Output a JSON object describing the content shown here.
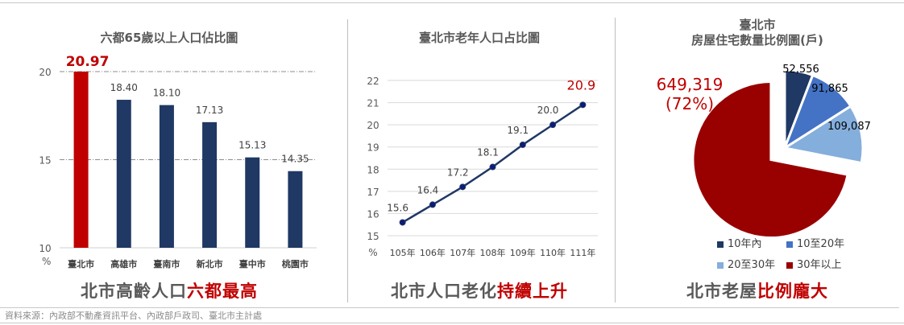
{
  "source": "資料來源：內政部不動產資訊平台、內政部戶政司、臺北市主計處",
  "colors": {
    "navy": "#1f3864",
    "red": "#c00000",
    "dark_red": "#990000",
    "blue": "#4472c4",
    "light_blue": "#84aedc"
  },
  "panel1": {
    "title": "六都65歲以上人口佔比圖",
    "caption_plain": "北市高齡人口",
    "caption_highlight": "六都最高",
    "highlight_label": "20.97",
    "unit": "%"
  },
  "panel2": {
    "title": "臺北市老年人口占比圖",
    "caption_plain": "北市人口老化",
    "caption_highlight": "持續上升",
    "highlight_label": "20.9",
    "unit": "%"
  },
  "panel3": {
    "title_line1": "臺北市",
    "title_line2": "房屋住宅數量比例圖(戶)",
    "caption_plain": "北市老屋",
    "caption_highlight": "比例龐大",
    "highlight_label_value": "649,319",
    "highlight_label_pct": "(72%)",
    "legend": [
      "10年內",
      "10至20年",
      "20至30年",
      "30年以上"
    ]
  },
  "chart_data": [
    {
      "type": "bar",
      "title": "六都65歲以上人口佔比圖",
      "categories": [
        "臺北市",
        "高雄市",
        "臺南市",
        "新北市",
        "臺中市",
        "桃園市"
      ],
      "values": [
        20.97,
        18.4,
        18.1,
        17.13,
        15.13,
        14.35
      ],
      "value_labels": [
        "20.97",
        "18.40",
        "18.10",
        "17.13",
        "15.13",
        "14.35"
      ],
      "bar_colors": [
        "#c00000",
        "#1f3864",
        "#1f3864",
        "#1f3864",
        "#1f3864",
        "#1f3864"
      ],
      "xlabel": "",
      "ylabel": "%",
      "ylim": [
        10,
        20
      ],
      "yticks": [
        10,
        15,
        20
      ],
      "grid": "dash-dot at 15 and 20"
    },
    {
      "type": "line",
      "title": "臺北市老年人口占比圖",
      "x": [
        "105年",
        "106年",
        "107年",
        "108年",
        "109年",
        "110年",
        "111年"
      ],
      "values": [
        15.6,
        16.4,
        17.2,
        18.1,
        19.1,
        20.0,
        20.9
      ],
      "value_labels": [
        "15.6",
        "16.4",
        "17.2",
        "18.1",
        "19.1",
        "20.0",
        "20.9"
      ],
      "xlabel": "",
      "ylabel": "%",
      "ylim": [
        15,
        22
      ],
      "yticks": [
        15,
        16,
        17,
        18,
        19,
        20,
        21,
        22
      ],
      "grid": true
    },
    {
      "type": "pie",
      "title": "臺北市 房屋住宅數量比例圖(戶)",
      "categories": [
        "10年內",
        "10至20年",
        "20至30年",
        "30年以上"
      ],
      "values": [
        52556,
        91865,
        109087,
        649319
      ],
      "value_labels": [
        "52,556",
        "91,865",
        "109,087",
        "649,319 (72%)"
      ],
      "colors": [
        "#1f3864",
        "#4472c4",
        "#84aedc",
        "#990000"
      ],
      "legend_position": "bottom"
    }
  ]
}
